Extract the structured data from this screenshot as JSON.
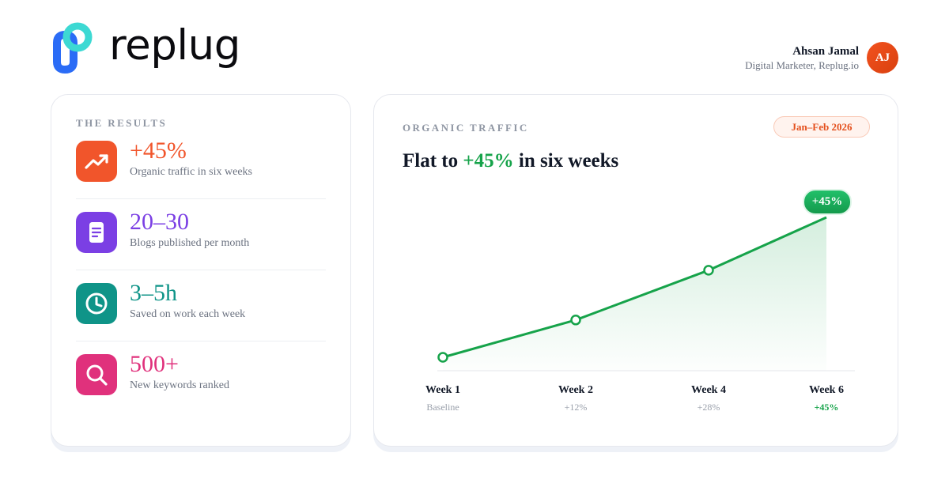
{
  "brand": {
    "name": "replug",
    "mark_colors": [
      "#2b6cf6",
      "#3dd9d3"
    ]
  },
  "user": {
    "name": "Ahsan Jamal",
    "role": "Digital Marketer, Replug.io",
    "initials": "AJ"
  },
  "results": {
    "label": "THE RESULTS",
    "stats": [
      {
        "value": "+45%",
        "desc": "Organic traffic in six weeks",
        "icon": "trend-up-icon",
        "color": "#f1552b"
      },
      {
        "value": "20–30",
        "desc": "Blogs published per month",
        "icon": "document-icon",
        "color": "#7b3fe4"
      },
      {
        "value": "3–5h",
        "desc": "Saved on work each week",
        "icon": "clock-icon",
        "color": "#0f9488"
      },
      {
        "value": "500+",
        "desc": "New keywords ranked",
        "icon": "search-icon",
        "color": "#e0317c"
      }
    ]
  },
  "traffic": {
    "label": "ORGANIC TRAFFIC",
    "period": "Jan–Feb 2026",
    "headline_pre": "Flat to",
    "headline_highlight": "+45%",
    "headline_post": "in six weeks",
    "accent": "#16a34a"
  },
  "chart_data": {
    "type": "line",
    "categories": [
      "Week 1",
      "Week 2",
      "Week 4",
      "Week 6"
    ],
    "x": [
      1,
      2,
      4,
      6
    ],
    "values": [
      0,
      12,
      28,
      45
    ],
    "point_labels": [
      "Baseline",
      "+12%",
      "+28%",
      "+45%"
    ],
    "peak_label": "+45%",
    "ylim": [
      0,
      45
    ],
    "grid": false,
    "color": "#16a34a"
  }
}
